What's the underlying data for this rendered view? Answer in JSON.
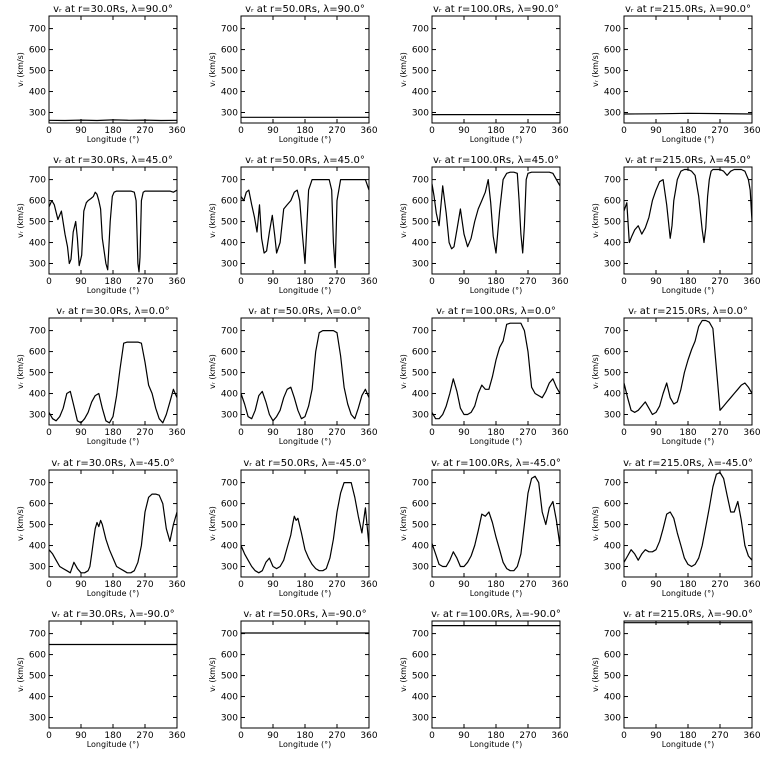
{
  "chart_data": {
    "type": "line",
    "layout": "5x4 grid of small line plots",
    "xlabel": "Longitude (°)",
    "ylabel": "vᵣ (km/s)",
    "xlim": [
      0,
      360
    ],
    "ylim": [
      250,
      760
    ],
    "xticks": [
      0,
      90,
      180,
      270,
      360
    ],
    "yticks": [
      300,
      400,
      500,
      600,
      700
    ],
    "line_color": "#000000",
    "panels": [
      {
        "title": "vᵣ at r=30.0Rs, λ=90.0°",
        "x": [
          0,
          45,
          90,
          135,
          180,
          225,
          270,
          315,
          360
        ],
        "y": [
          263,
          262,
          264,
          262,
          265,
          263,
          264,
          262,
          263
        ]
      },
      {
        "title": "vᵣ at r=50.0Rs, λ=90.0°",
        "x": [
          0,
          360
        ],
        "y": [
          277,
          277
        ]
      },
      {
        "title": "vᵣ at r=100.0Rs, λ=90.0°",
        "x": [
          0,
          360
        ],
        "y": [
          290,
          290
        ]
      },
      {
        "title": "vᵣ at r=215.0Rs, λ=90.0°",
        "x": [
          0,
          90,
          180,
          270,
          360
        ],
        "y": [
          293,
          294,
          296,
          295,
          293
        ]
      },
      {
        "title": "vᵣ at r=30.0Rs, λ=45.0°",
        "x": [
          0,
          8,
          15,
          25,
          35,
          45,
          52,
          57,
          62,
          68,
          75,
          80,
          85,
          92,
          98,
          105,
          110,
          118,
          125,
          130,
          135,
          140,
          145,
          150,
          160,
          165,
          172,
          178,
          183,
          190,
          200,
          215,
          230,
          240,
          245,
          250,
          253,
          256,
          260,
          265,
          270,
          280,
          290,
          300,
          310,
          320,
          330,
          340,
          350,
          360
        ],
        "y": [
          570,
          600,
          580,
          510,
          550,
          440,
          380,
          300,
          320,
          450,
          500,
          420,
          290,
          340,
          550,
          590,
          600,
          610,
          620,
          640,
          630,
          600,
          560,
          420,
          300,
          270,
          500,
          620,
          640,
          645,
          645,
          645,
          645,
          640,
          600,
          300,
          260,
          330,
          600,
          640,
          645,
          645,
          645,
          645,
          645,
          645,
          645,
          645,
          640,
          650
        ]
      },
      {
        "title": "vᵣ at r=50.0Rs, λ=45.0°",
        "x": [
          0,
          8,
          15,
          22,
          30,
          38,
          45,
          52,
          58,
          65,
          72,
          80,
          88,
          95,
          100,
          110,
          120,
          130,
          140,
          150,
          158,
          165,
          172,
          180,
          190,
          200,
          210,
          220,
          230,
          240,
          248,
          255,
          260,
          265,
          270,
          280,
          290,
          300,
          310,
          320,
          330,
          340,
          350,
          360
        ],
        "y": [
          620,
          600,
          640,
          650,
          580,
          520,
          450,
          580,
          420,
          350,
          360,
          450,
          530,
          430,
          350,
          400,
          560,
          580,
          600,
          640,
          650,
          600,
          450,
          300,
          650,
          700,
          700,
          700,
          700,
          700,
          700,
          650,
          400,
          280,
          600,
          700,
          700,
          700,
          700,
          700,
          700,
          700,
          700,
          650
        ]
      },
      {
        "title": "vᵣ at r=100.0Rs, λ=45.0°",
        "x": [
          0,
          6,
          12,
          20,
          30,
          40,
          48,
          55,
          62,
          70,
          80,
          90,
          100,
          110,
          120,
          130,
          140,
          150,
          158,
          165,
          172,
          180,
          190,
          200,
          210,
          220,
          230,
          240,
          245,
          250,
          255,
          260,
          265,
          270,
          280,
          290,
          300,
          310,
          320,
          330,
          340,
          350,
          360
        ],
        "y": [
          680,
          620,
          540,
          480,
          670,
          540,
          400,
          370,
          380,
          460,
          560,
          440,
          380,
          420,
          500,
          560,
          600,
          640,
          700,
          590,
          430,
          350,
          550,
          700,
          730,
          735,
          735,
          730,
          600,
          440,
          350,
          480,
          700,
          730,
          735,
          735,
          735,
          735,
          735,
          735,
          730,
          700,
          670
        ]
      },
      {
        "title": "vᵣ at r=215.0Rs, λ=45.0°",
        "x": [
          0,
          8,
          15,
          22,
          30,
          40,
          50,
          60,
          70,
          80,
          90,
          100,
          110,
          120,
          130,
          135,
          140,
          145,
          150,
          160,
          170,
          180,
          190,
          200,
          210,
          220,
          225,
          230,
          235,
          240,
          245,
          250,
          260,
          270,
          280,
          290,
          300,
          310,
          320,
          330,
          340,
          350,
          355,
          360
        ],
        "y": [
          550,
          590,
          400,
          430,
          460,
          480,
          440,
          470,
          520,
          600,
          650,
          690,
          700,
          580,
          420,
          480,
          600,
          650,
          700,
          740,
          748,
          748,
          740,
          720,
          620,
          460,
          400,
          470,
          620,
          700,
          740,
          748,
          748,
          748,
          740,
          720,
          740,
          748,
          748,
          748,
          740,
          700,
          650,
          500
        ]
      },
      {
        "title": "vᵣ at r=30.0Rs, λ=0.0°",
        "x": [
          0,
          10,
          20,
          30,
          40,
          50,
          60,
          70,
          80,
          90,
          100,
          110,
          120,
          130,
          140,
          150,
          160,
          170,
          180,
          190,
          200,
          210,
          220,
          230,
          240,
          250,
          260,
          270,
          280,
          290,
          300,
          310,
          320,
          330,
          340,
          350,
          360
        ],
        "y": [
          310,
          280,
          270,
          290,
          330,
          400,
          410,
          340,
          270,
          260,
          280,
          310,
          360,
          390,
          400,
          330,
          270,
          260,
          290,
          390,
          520,
          640,
          645,
          645,
          645,
          645,
          640,
          550,
          440,
          400,
          330,
          280,
          260,
          300,
          360,
          420,
          380
        ]
      },
      {
        "title": "vᵣ at r=50.0Rs, λ=0.0°",
        "x": [
          0,
          10,
          20,
          30,
          40,
          50,
          60,
          70,
          80,
          90,
          100,
          110,
          120,
          130,
          140,
          150,
          160,
          170,
          180,
          190,
          200,
          210,
          220,
          230,
          240,
          250,
          260,
          270,
          280,
          290,
          300,
          310,
          320,
          330,
          340,
          350,
          360
        ],
        "y": [
          400,
          350,
          290,
          280,
          320,
          390,
          410,
          360,
          300,
          270,
          290,
          320,
          380,
          420,
          430,
          380,
          320,
          280,
          290,
          340,
          420,
          600,
          690,
          700,
          700,
          700,
          700,
          690,
          580,
          430,
          350,
          300,
          280,
          330,
          390,
          420,
          380
        ]
      },
      {
        "title": "vᵣ at r=100.0Rs, λ=0.0°",
        "x": [
          0,
          10,
          20,
          30,
          40,
          50,
          60,
          70,
          80,
          90,
          100,
          110,
          120,
          130,
          140,
          150,
          160,
          170,
          180,
          190,
          200,
          210,
          220,
          230,
          240,
          250,
          260,
          270,
          280,
          290,
          300,
          310,
          320,
          330,
          340,
          350,
          360
        ],
        "y": [
          310,
          280,
          280,
          300,
          340,
          400,
          470,
          410,
          330,
          300,
          300,
          310,
          340,
          400,
          440,
          420,
          420,
          480,
          560,
          620,
          650,
          730,
          735,
          735,
          735,
          735,
          700,
          600,
          430,
          400,
          390,
          380,
          410,
          450,
          470,
          430,
          400
        ]
      },
      {
        "title": "vᵣ at r=215.0Rs, λ=0.0°",
        "x": [
          0,
          10,
          20,
          30,
          40,
          50,
          60,
          70,
          80,
          90,
          100,
          110,
          120,
          130,
          140,
          150,
          160,
          170,
          180,
          190,
          200,
          210,
          220,
          230,
          240,
          250,
          260,
          270,
          280,
          290,
          300,
          310,
          320,
          330,
          340,
          350,
          360
        ],
        "y": [
          450,
          380,
          320,
          310,
          320,
          340,
          360,
          330,
          300,
          310,
          340,
          400,
          450,
          380,
          350,
          360,
          420,
          500,
          560,
          610,
          650,
          720,
          748,
          748,
          740,
          710,
          520,
          320,
          340,
          360,
          380,
          400,
          420,
          440,
          450,
          430,
          400
        ]
      },
      {
        "title": "vᵣ at r=30.0Rs, λ=-45.0°",
        "x": [
          0,
          10,
          20,
          30,
          40,
          50,
          60,
          70,
          80,
          90,
          100,
          110,
          115,
          120,
          125,
          130,
          135,
          140,
          145,
          150,
          160,
          170,
          180,
          190,
          200,
          210,
          220,
          230,
          240,
          250,
          260,
          270,
          280,
          290,
          300,
          310,
          320,
          330,
          340,
          350,
          360
        ],
        "y": [
          380,
          360,
          330,
          300,
          290,
          280,
          270,
          320,
          290,
          270,
          270,
          280,
          300,
          360,
          420,
          480,
          510,
          490,
          520,
          500,
          430,
          380,
          340,
          300,
          290,
          280,
          270,
          270,
          280,
          320,
          400,
          560,
          630,
          645,
          645,
          640,
          600,
          480,
          420,
          500,
          560
        ]
      },
      {
        "title": "vᵣ at r=50.0Rs, λ=-45.0°",
        "x": [
          0,
          10,
          20,
          30,
          40,
          50,
          60,
          70,
          80,
          90,
          100,
          110,
          120,
          130,
          140,
          145,
          150,
          155,
          160,
          170,
          180,
          190,
          200,
          210,
          220,
          230,
          240,
          250,
          260,
          270,
          280,
          290,
          300,
          310,
          320,
          330,
          340,
          350,
          360
        ],
        "y": [
          400,
          360,
          330,
          300,
          280,
          270,
          280,
          320,
          340,
          300,
          290,
          300,
          330,
          390,
          450,
          500,
          540,
          520,
          530,
          460,
          380,
          340,
          310,
          290,
          280,
          280,
          290,
          340,
          430,
          560,
          650,
          700,
          700,
          700,
          630,
          540,
          460,
          580,
          400
        ]
      },
      {
        "title": "vᵣ at r=100.0Rs, λ=-45.0°",
        "x": [
          0,
          10,
          20,
          30,
          40,
          50,
          60,
          70,
          80,
          90,
          100,
          110,
          120,
          130,
          140,
          150,
          160,
          170,
          180,
          190,
          200,
          210,
          220,
          230,
          240,
          250,
          260,
          270,
          280,
          290,
          300,
          310,
          320,
          330,
          340,
          350,
          360
        ],
        "y": [
          410,
          360,
          310,
          300,
          300,
          330,
          370,
          340,
          300,
          300,
          320,
          350,
          400,
          470,
          550,
          540,
          560,
          510,
          440,
          380,
          320,
          290,
          280,
          280,
          300,
          360,
          500,
          650,
          720,
          730,
          700,
          560,
          500,
          580,
          610,
          520,
          400
        ]
      },
      {
        "title": "vᵣ at r=215.0Rs, λ=-45.0°",
        "x": [
          0,
          10,
          20,
          30,
          40,
          50,
          60,
          70,
          80,
          90,
          100,
          110,
          120,
          130,
          140,
          150,
          160,
          170,
          180,
          190,
          200,
          210,
          220,
          230,
          240,
          250,
          260,
          270,
          280,
          290,
          300,
          310,
          320,
          330,
          340,
          350,
          360
        ],
        "y": [
          320,
          350,
          380,
          360,
          330,
          360,
          380,
          370,
          370,
          380,
          420,
          480,
          550,
          560,
          530,
          460,
          400,
          340,
          310,
          300,
          310,
          340,
          400,
          490,
          580,
          680,
          740,
          748,
          720,
          640,
          560,
          560,
          610,
          520,
          400,
          350,
          330
        ]
      },
      {
        "title": "vᵣ at r=30.0Rs, λ=-90.0°",
        "x": [
          0,
          360
        ],
        "y": [
          648,
          648
        ]
      },
      {
        "title": "vᵣ at r=50.0Rs, λ=-90.0°",
        "x": [
          0,
          360
        ],
        "y": [
          703,
          703
        ]
      },
      {
        "title": "vᵣ at r=100.0Rs, λ=-90.0°",
        "x": [
          0,
          360
        ],
        "y": [
          738,
          738
        ]
      },
      {
        "title": "vᵣ at r=215.0Rs, λ=-90.0°",
        "x": [
          0,
          360
        ],
        "y": [
          752,
          752
        ]
      }
    ]
  }
}
